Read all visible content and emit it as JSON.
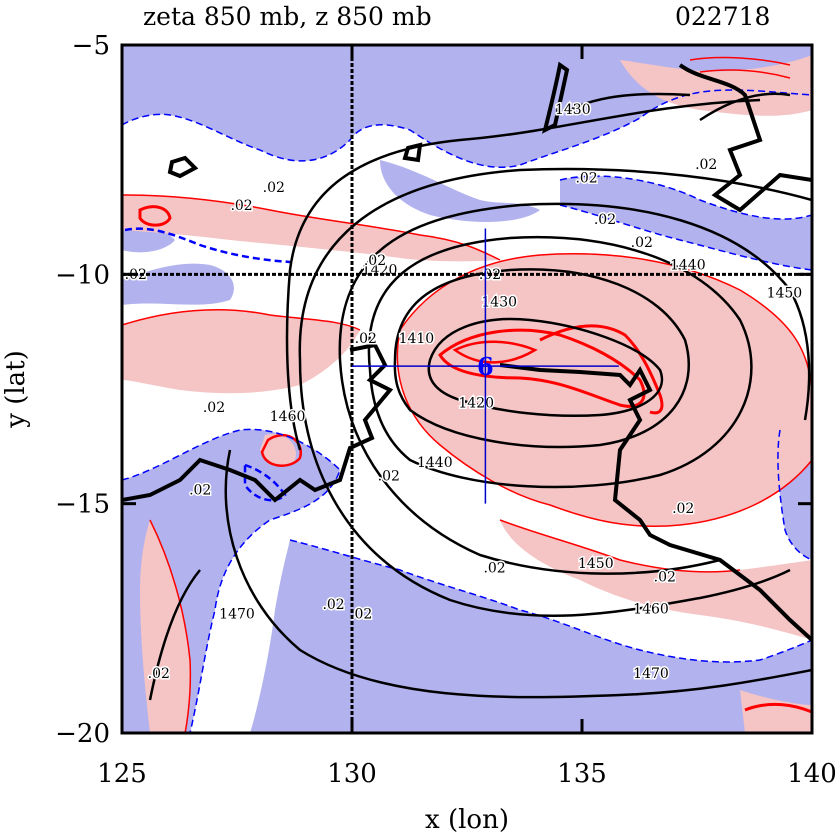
{
  "chart_data": {
    "type": "contour",
    "title": "zeta 850 mb, z 850 mb",
    "date_code": "022718",
    "xlabel": "x (lon)",
    "ylabel": "y (lat)",
    "xlim": [
      125,
      140
    ],
    "ylim": [
      -20,
      -5
    ],
    "x_ticks": [
      125,
      130,
      135,
      140
    ],
    "x_tick_labels": [
      "125",
      "130",
      "135",
      "140"
    ],
    "y_ticks": [
      -5,
      -10,
      -15,
      -20
    ],
    "y_tick_labels": [
      "−5",
      "−10",
      "−15",
      "−20"
    ],
    "grid_lines": {
      "lon": 130,
      "lat": -10
    },
    "storm_center": {
      "lon": 132.9,
      "lat": -12.0,
      "label": "6"
    },
    "crosshair": {
      "lon_range": [
        130.0,
        135.8
      ],
      "lat_range": [
        -15.0,
        -9.0
      ]
    },
    "height_contour_labels": [
      {
        "text": "1420",
        "lon": 132.7,
        "lat": -12.9
      },
      {
        "text": "1430",
        "lon": 133.2,
        "lat": -10.7
      },
      {
        "text": "1430",
        "lon": 134.8,
        "lat": -6.5
      },
      {
        "text": "1440",
        "lon": 137.3,
        "lat": -9.9
      },
      {
        "text": "1440",
        "lon": 131.8,
        "lat": -14.2
      },
      {
        "text": "1450",
        "lon": 135.3,
        "lat": -16.4
      },
      {
        "text": "1450",
        "lon": 139.4,
        "lat": -10.5
      },
      {
        "text": "1460",
        "lon": 136.5,
        "lat": -17.4
      },
      {
        "text": "1460",
        "lon": 128.6,
        "lat": -13.2
      },
      {
        "text": "1470",
        "lon": 136.5,
        "lat": -18.8
      },
      {
        "text": "1470",
        "lon": 127.5,
        "lat": -17.5
      },
      {
        "text": "1410",
        "lon": 131.4,
        "lat": -11.5
      },
      {
        "text": "1420",
        "lon": 130.6,
        "lat": -10.0
      }
    ],
    "vorticity_contour_labels": [
      {
        "text": ".02",
        "lon": 128.3,
        "lat": -8.2
      },
      {
        "text": ".02",
        "lon": 127.6,
        "lat": -8.6
      },
      {
        "text": ".02",
        "lon": 135.5,
        "lat": -8.9
      },
      {
        "text": ".02",
        "lon": 136.3,
        "lat": -9.4
      },
      {
        "text": ".02",
        "lon": 135.1,
        "lat": -8.0
      },
      {
        "text": ".02",
        "lon": 137.7,
        "lat": -7.7
      },
      {
        "text": ".02",
        "lon": 130.5,
        "lat": -9.8
      },
      {
        "text": ".02",
        "lon": 133.0,
        "lat": -10.1
      },
      {
        "text": ".02",
        "lon": 127.0,
        "lat": -13.0
      },
      {
        "text": ".02",
        "lon": 130.8,
        "lat": -14.5
      },
      {
        "text": ".02",
        "lon": 126.7,
        "lat": -14.8
      },
      {
        "text": ".02",
        "lon": 125.3,
        "lat": -10.1
      },
      {
        "text": ".02",
        "lon": 130.3,
        "lat": -11.5
      },
      {
        "text": ".02",
        "lon": 133.1,
        "lat": -16.5
      },
      {
        "text": ".02",
        "lon": 136.8,
        "lat": -16.7
      },
      {
        "text": ".02",
        "lon": 137.2,
        "lat": -15.2
      },
      {
        "text": ".02",
        "lon": 129.6,
        "lat": -17.3
      },
      {
        "text": ".02",
        "lon": 130.2,
        "lat": -17.5
      },
      {
        "text": ".02",
        "lon": 125.8,
        "lat": -18.8
      }
    ],
    "legend": "none"
  },
  "colors": {
    "positive_fill": "#f5c4c4",
    "negative_fill": "#b2b2ee",
    "positive_line": "#ff0000",
    "negative_line": "#0000ff",
    "height_line": "#000000",
    "crosshair": "#0000cc"
  }
}
